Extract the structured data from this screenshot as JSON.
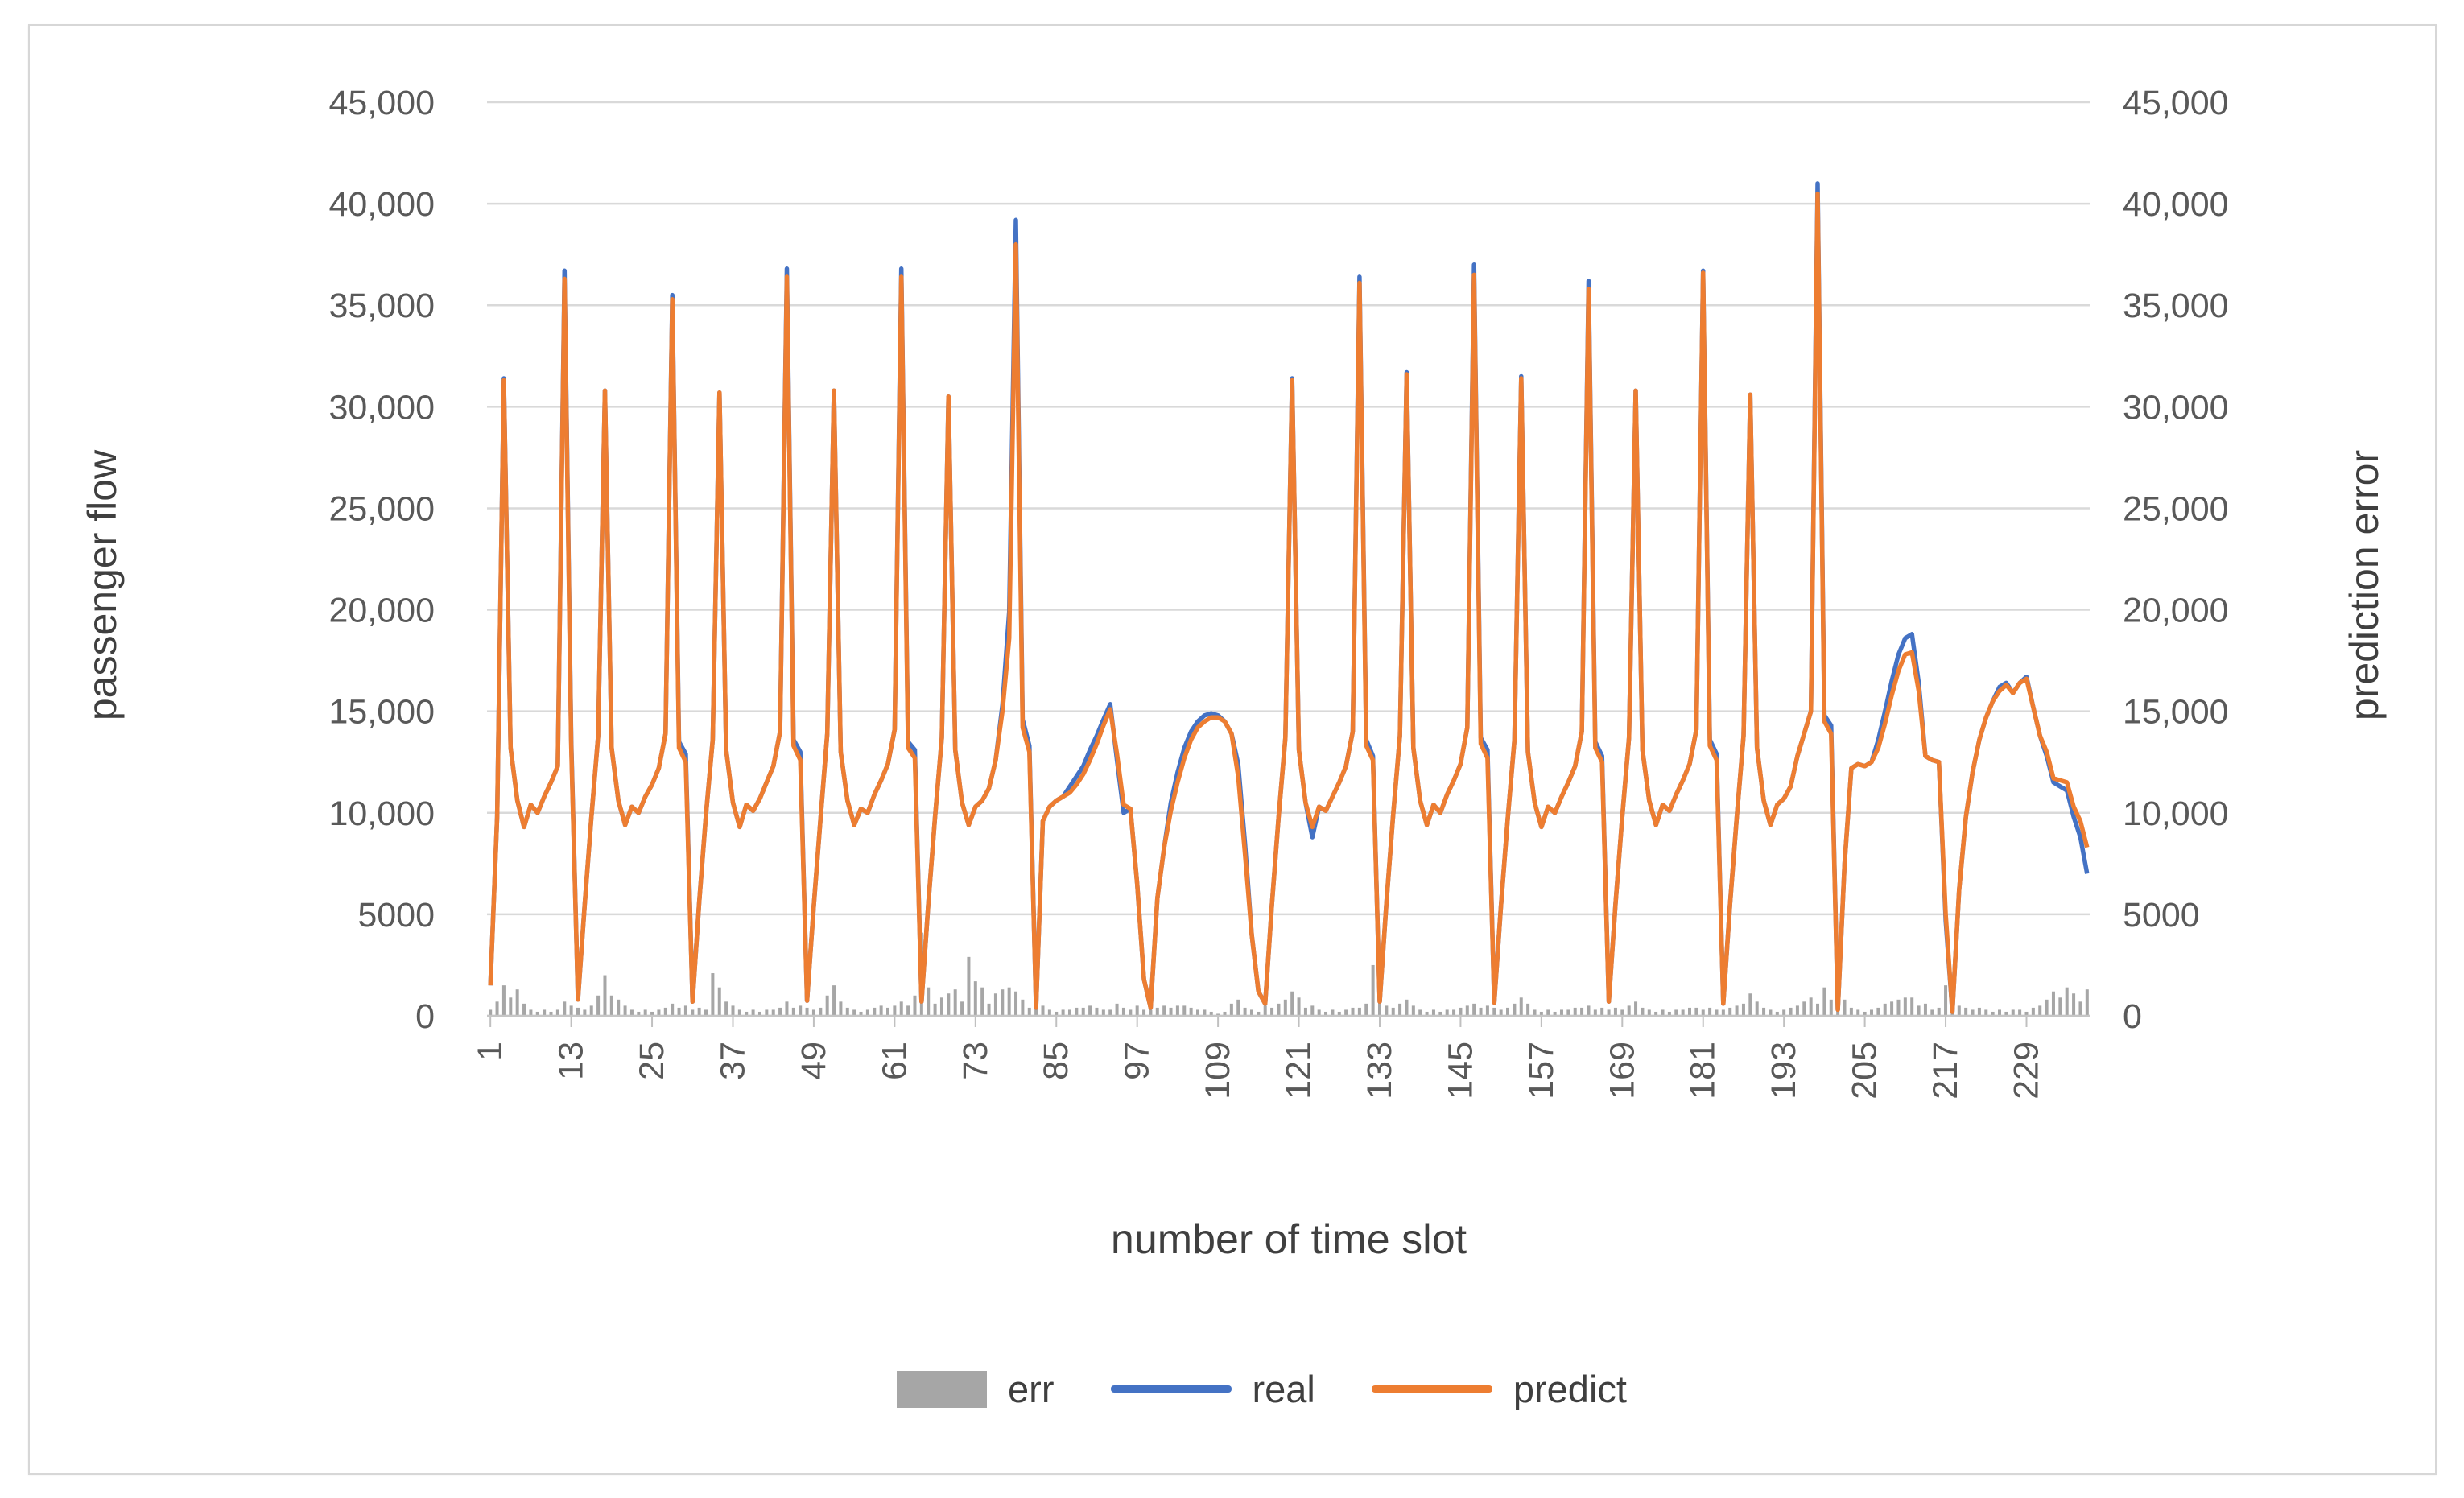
{
  "chart_data": {
    "type": "line",
    "title": "",
    "xlabel": "number of time slot",
    "ylabel_left": "passenger flow",
    "ylabel_right": "prediction error",
    "ylim": [
      0,
      45000
    ],
    "y_tick_step": 5000,
    "y_tick_labels": [
      "0",
      "5000",
      "10,000",
      "15,000",
      "20,000",
      "25,000",
      "30,000",
      "35,000",
      "40,000",
      "45,000"
    ],
    "x_tick_labels": [
      1,
      13,
      25,
      37,
      49,
      61,
      73,
      85,
      97,
      109,
      121,
      133,
      145,
      157,
      169,
      181,
      193,
      205,
      217,
      229
    ],
    "n_slots": 238,
    "grid": true,
    "legend_position": "bottom",
    "colors": {
      "err": "#a6a6a6",
      "real": "#4472c4",
      "predict": "#ed7d31",
      "gridline": "#d9d9d9",
      "axis_text": "#595959",
      "title_text": "#3f3f3f"
    },
    "series": [
      {
        "name": "err",
        "type": "bar",
        "values": [
          300,
          700,
          1500,
          900,
          1300,
          600,
          300,
          200,
          300,
          200,
          300,
          700,
          500,
          400,
          300,
          500,
          1000,
          2000,
          1000,
          800,
          500,
          300,
          200,
          300,
          200,
          300,
          400,
          600,
          400,
          500,
          300,
          400,
          300,
          2100,
          1400,
          700,
          500,
          300,
          200,
          300,
          200,
          300,
          300,
          400,
          700,
          400,
          500,
          400,
          300,
          400,
          1000,
          1500,
          700,
          400,
          300,
          200,
          300,
          400,
          500,
          400,
          500,
          700,
          500,
          1000,
          4100,
          1400,
          600,
          900,
          1100,
          1300,
          700,
          2900,
          1700,
          1400,
          600,
          1100,
          1300,
          1400,
          1200,
          800,
          400,
          900,
          500,
          300,
          200,
          300,
          300,
          400,
          400,
          500,
          400,
          300,
          300,
          600,
          400,
          300,
          500,
          300,
          300,
          400,
          500,
          400,
          500,
          500,
          400,
          300,
          300,
          200,
          100,
          200,
          600,
          800,
          400,
          300,
          200,
          500,
          400,
          600,
          800,
          1200,
          900,
          400,
          500,
          300,
          200,
          300,
          200,
          300,
          400,
          400,
          600,
          2500,
          1300,
          500,
          400,
          600,
          800,
          500,
          300,
          200,
          300,
          200,
          300,
          300,
          400,
          500,
          600,
          400,
          500,
          400,
          300,
          400,
          600,
          900,
          600,
          300,
          200,
          300,
          200,
          300,
          300,
          400,
          400,
          500,
          300,
          400,
          300,
          400,
          300,
          500,
          700,
          400,
          300,
          200,
          300,
          200,
          300,
          300,
          400,
          400,
          300,
          400,
          300,
          300,
          400,
          500,
          600,
          1100,
          700,
          400,
          300,
          200,
          300,
          400,
          500,
          700,
          900,
          600,
          1400,
          800,
          1300,
          800,
          400,
          300,
          200,
          300,
          400,
          600,
          700,
          800,
          900,
          900,
          500,
          600,
          300,
          400,
          1500,
          800,
          500,
          400,
          300,
          400,
          300,
          200,
          300,
          200,
          300,
          300,
          200,
          400,
          500,
          800,
          1200,
          900,
          1400,
          1100,
          700,
          1300
        ]
      },
      {
        "name": "real",
        "type": "line",
        "values": [
          1500,
          9800,
          31400,
          13200,
          10600,
          9300,
          10400,
          10000,
          10800,
          11500,
          12300,
          36700,
          13600,
          800,
          5500,
          9800,
          13800,
          30800,
          13200,
          10600,
          9400,
          10300,
          10000,
          10800,
          11400,
          12200,
          13900,
          35500,
          13500,
          12900,
          700,
          5600,
          9900,
          13600,
          30700,
          13100,
          10500,
          9300,
          10400,
          10100,
          10700,
          11500,
          12300,
          14000,
          36800,
          13600,
          13000,
          750,
          5400,
          9700,
          13900,
          30800,
          13000,
          10600,
          9400,
          10200,
          10000,
          10900,
          11600,
          12400,
          14100,
          36800,
          13500,
          13100,
          700,
          5500,
          9800,
          13700,
          30500,
          13100,
          10500,
          9400,
          10300,
          10600,
          11200,
          12600,
          15300,
          19900,
          39200,
          14600,
          13300,
          400,
          9600,
          10300,
          10600,
          10800,
          11300,
          11800,
          12300,
          13100,
          13800,
          14600,
          15350,
          12600,
          10000,
          10200,
          6500,
          1800,
          400,
          5800,
          8300,
          10500,
          12000,
          13200,
          14000,
          14500,
          14800,
          14900,
          14800,
          14500,
          13900,
          12400,
          8500,
          4000,
          1200,
          600,
          5500,
          9800,
          13700,
          31400,
          13100,
          10500,
          8800,
          10300,
          10100,
          10800,
          11500,
          12300,
          14000,
          36400,
          13600,
          12800,
          700,
          5600,
          9900,
          13800,
          31700,
          13200,
          10600,
          9400,
          10400,
          10000,
          10900,
          11600,
          12400,
          14200,
          37000,
          13700,
          13100,
          650,
          5400,
          9700,
          13600,
          31500,
          13000,
          10500,
          9300,
          10300,
          10000,
          10800,
          11500,
          12300,
          14000,
          36200,
          13500,
          12800,
          700,
          5500,
          9800,
          13700,
          30800,
          13100,
          10600,
          9400,
          10400,
          10100,
          10900,
          11600,
          12400,
          14100,
          36700,
          13600,
          12900,
          600,
          5500,
          9800,
          13800,
          30600,
          13200,
          10600,
          9400,
          10400,
          10700,
          11300,
          12800,
          13900,
          15000,
          41000,
          14800,
          14300,
          300,
          7500,
          12200,
          12400,
          12300,
          12500,
          13600,
          15000,
          16500,
          17800,
          18600,
          18800,
          16400,
          12800,
          12600,
          12500,
          4700,
          200,
          6200,
          9800,
          12000,
          13600,
          14700,
          15500,
          16200,
          16400,
          15900,
          16400,
          16700,
          15200,
          13800,
          12800,
          11500,
          11300,
          11100,
          9800,
          8800,
          7000
        ]
      },
      {
        "name": "predict",
        "type": "line",
        "values": [
          1500,
          9800,
          31300,
          13200,
          10600,
          9300,
          10400,
          10000,
          10800,
          11500,
          12300,
          36300,
          13300,
          800,
          5500,
          9800,
          13800,
          30800,
          13200,
          10600,
          9400,
          10300,
          10000,
          10800,
          11400,
          12200,
          13900,
          35300,
          13200,
          12500,
          700,
          5600,
          9900,
          13600,
          30700,
          13100,
          10500,
          9300,
          10400,
          10100,
          10700,
          11500,
          12300,
          14000,
          36400,
          13300,
          12600,
          750,
          5400,
          9700,
          13900,
          30800,
          13000,
          10600,
          9400,
          10200,
          10000,
          10900,
          11600,
          12400,
          14100,
          36400,
          13200,
          12700,
          700,
          5500,
          9800,
          13700,
          30500,
          13100,
          10500,
          9400,
          10300,
          10600,
          11200,
          12600,
          15000,
          18600,
          38000,
          14200,
          13000,
          400,
          9600,
          10300,
          10600,
          10800,
          11000,
          11400,
          11900,
          12600,
          13400,
          14300,
          15100,
          12900,
          10400,
          10200,
          6500,
          1800,
          400,
          5800,
          8300,
          10100,
          11500,
          12700,
          13600,
          14200,
          14500,
          14700,
          14700,
          14500,
          13900,
          11800,
          8000,
          4000,
          1200,
          600,
          5500,
          9800,
          13700,
          31300,
          13100,
          10500,
          9300,
          10300,
          10100,
          10800,
          11500,
          12300,
          14000,
          36100,
          13300,
          12600,
          700,
          5600,
          9900,
          13800,
          31600,
          13200,
          10600,
          9400,
          10400,
          10000,
          10900,
          11600,
          12400,
          14200,
          36500,
          13400,
          12700,
          650,
          5400,
          9700,
          13600,
          31400,
          13000,
          10500,
          9300,
          10300,
          10000,
          10800,
          11500,
          12300,
          14000,
          35800,
          13200,
          12500,
          700,
          5500,
          9800,
          13700,
          30800,
          13100,
          10600,
          9400,
          10400,
          10100,
          10900,
          11600,
          12400,
          14100,
          36600,
          13300,
          12600,
          600,
          5500,
          9800,
          13800,
          30600,
          13200,
          10600,
          9400,
          10400,
          10700,
          11300,
          12800,
          13900,
          15000,
          40500,
          14500,
          13900,
          300,
          7500,
          12200,
          12400,
          12300,
          12500,
          13200,
          14400,
          15800,
          17000,
          17800,
          17900,
          16000,
          12800,
          12600,
          12500,
          5000,
          200,
          6200,
          9800,
          12000,
          13600,
          14700,
          15500,
          16000,
          16300,
          15900,
          16400,
          16600,
          15200,
          13800,
          13000,
          11700,
          11600,
          11500,
          10300,
          9600,
          8300
        ]
      }
    ],
    "legend": {
      "err": "err",
      "real": "real",
      "predict": "predict"
    }
  }
}
